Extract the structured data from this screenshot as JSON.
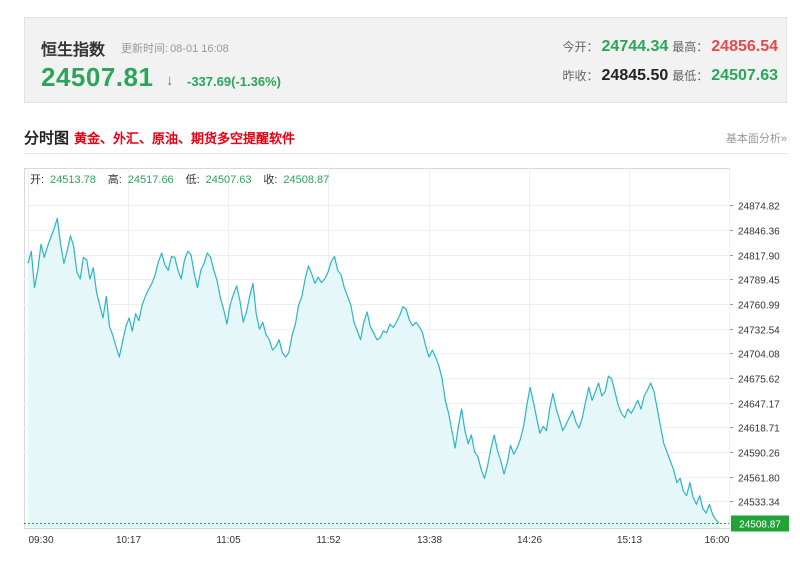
{
  "colors": {
    "up": "#e84a4a",
    "down": "#2aa55a",
    "line": "#2bb5c4",
    "fill": "#e6f7f9",
    "highlight_red": "#e60012",
    "last_price_bg": "#22a33a"
  },
  "quote": {
    "name": "恒生指数",
    "update_label": "更新时间:",
    "update_time": "08-01 16:08",
    "price": "24507.81",
    "arrow": "↓",
    "change": "-337.69(-1.36%)",
    "open_label": "今开：",
    "open": "24744.34",
    "high_label": "最高：",
    "high": "24856.54",
    "prev_close_label": "昨收：",
    "prev_close": "24845.50",
    "low_label": "最低：",
    "low": "24507.63"
  },
  "section": {
    "title": "分时图",
    "promo_link": "黄金、外汇、原油、期货多空提醒软件",
    "right_link": "基本面分析»"
  },
  "chart_data": {
    "type": "area",
    "ohlc_labels": [
      {
        "label": "开:",
        "value": "24513.78"
      },
      {
        "label": "高:",
        "value": "24517.66"
      },
      {
        "label": "低:",
        "value": "24507.63"
      },
      {
        "label": "收:",
        "value": "24508.87"
      }
    ],
    "x_ticks": [
      "09:30",
      "10:17",
      "11:05",
      "11:52",
      "13:38",
      "14:26",
      "15:13",
      "16:00"
    ],
    "y_ticks": [
      "24874.82",
      "24846.36",
      "24817.90",
      "24789.45",
      "24760.99",
      "24732.54",
      "24704.08",
      "24675.62",
      "24647.17",
      "24618.71",
      "24590.26",
      "24561.80",
      "24533.34"
    ],
    "y_range": [
      24505.0,
      24895.0
    ],
    "last_price_label": "24508.87",
    "last_price": 24508.87,
    "x_units": "minutes since 09:30 on the time axis (0 = 09:30, 7 ticks evenly spaced to 16:00)",
    "series": [
      {
        "values": [
          [
            0,
            24808
          ],
          [
            2,
            24822
          ],
          [
            4,
            24780
          ],
          [
            6,
            24800
          ],
          [
            8,
            24830
          ],
          [
            10,
            24815
          ],
          [
            12,
            24828
          ],
          [
            14,
            24838
          ],
          [
            16,
            24848
          ],
          [
            18,
            24860
          ],
          [
            20,
            24830
          ],
          [
            22,
            24808
          ],
          [
            24,
            24822
          ],
          [
            26,
            24840
          ],
          [
            28,
            24828
          ],
          [
            30,
            24798
          ],
          [
            32,
            24790
          ],
          [
            34,
            24815
          ],
          [
            36,
            24812
          ],
          [
            38,
            24790
          ],
          [
            40,
            24803
          ],
          [
            42,
            24775
          ],
          [
            44,
            24760
          ],
          [
            46,
            24745
          ],
          [
            48,
            24770
          ],
          [
            50,
            24735
          ],
          [
            52,
            24725
          ],
          [
            54,
            24712
          ],
          [
            56,
            24700
          ],
          [
            58,
            24718
          ],
          [
            60,
            24735
          ],
          [
            62,
            24745
          ],
          [
            64,
            24730
          ],
          [
            66,
            24750
          ],
          [
            68,
            24742
          ],
          [
            70,
            24760
          ],
          [
            72,
            24770
          ],
          [
            74,
            24778
          ],
          [
            76,
            24785
          ],
          [
            78,
            24795
          ],
          [
            80,
            24810
          ],
          [
            82,
            24820
          ],
          [
            84,
            24806
          ],
          [
            86,
            24800
          ],
          [
            88,
            24816
          ],
          [
            90,
            24815
          ],
          [
            92,
            24800
          ],
          [
            94,
            24790
          ],
          [
            96,
            24812
          ],
          [
            98,
            24822
          ],
          [
            100,
            24818
          ],
          [
            102,
            24796
          ],
          [
            104,
            24780
          ],
          [
            106,
            24800
          ],
          [
            108,
            24808
          ],
          [
            110,
            24820
          ],
          [
            112,
            24815
          ],
          [
            114,
            24800
          ],
          [
            116,
            24788
          ],
          [
            118,
            24768
          ],
          [
            120,
            24755
          ],
          [
            122,
            24738
          ],
          [
            124,
            24760
          ],
          [
            126,
            24772
          ],
          [
            128,
            24782
          ],
          [
            130,
            24765
          ],
          [
            132,
            24740
          ],
          [
            134,
            24752
          ],
          [
            136,
            24770
          ],
          [
            138,
            24785
          ],
          [
            140,
            24750
          ],
          [
            142,
            24732
          ],
          [
            144,
            24740
          ],
          [
            146,
            24726
          ],
          [
            148,
            24720
          ],
          [
            150,
            24708
          ],
          [
            152,
            24712
          ],
          [
            154,
            24720
          ],
          [
            156,
            24705
          ],
          [
            158,
            24700
          ],
          [
            160,
            24705
          ],
          [
            162,
            24725
          ],
          [
            164,
            24738
          ],
          [
            166,
            24760
          ],
          [
            168,
            24770
          ],
          [
            170,
            24790
          ],
          [
            172,
            24805
          ],
          [
            174,
            24796
          ],
          [
            176,
            24785
          ],
          [
            178,
            24792
          ],
          [
            180,
            24786
          ],
          [
            182,
            24790
          ],
          [
            184,
            24798
          ],
          [
            186,
            24810
          ],
          [
            188,
            24816
          ],
          [
            190,
            24800
          ],
          [
            192,
            24795
          ],
          [
            194,
            24780
          ],
          [
            196,
            24770
          ],
          [
            198,
            24760
          ],
          [
            200,
            24740
          ],
          [
            202,
            24730
          ],
          [
            204,
            24720
          ],
          [
            206,
            24740
          ],
          [
            208,
            24752
          ],
          [
            210,
            24735
          ],
          [
            212,
            24728
          ],
          [
            214,
            24720
          ],
          [
            216,
            24722
          ],
          [
            218,
            24730
          ],
          [
            220,
            24728
          ],
          [
            222,
            24738
          ],
          [
            224,
            24734
          ],
          [
            226,
            24740
          ],
          [
            228,
            24748
          ],
          [
            230,
            24758
          ],
          [
            232,
            24755
          ],
          [
            234,
            24742
          ],
          [
            236,
            24736
          ],
          [
            238,
            24740
          ],
          [
            240,
            24735
          ],
          [
            242,
            24728
          ],
          [
            244,
            24712
          ],
          [
            246,
            24700
          ],
          [
            248,
            24708
          ],
          [
            250,
            24700
          ],
          [
            252,
            24690
          ],
          [
            254,
            24675
          ],
          [
            256,
            24650
          ],
          [
            258,
            24635
          ],
          [
            260,
            24615
          ],
          [
            262,
            24595
          ],
          [
            264,
            24620
          ],
          [
            266,
            24640
          ],
          [
            268,
            24615
          ],
          [
            270,
            24600
          ],
          [
            272,
            24610
          ],
          [
            274,
            24590
          ],
          [
            276,
            24585
          ],
          [
            278,
            24570
          ],
          [
            280,
            24560
          ],
          [
            282,
            24575
          ],
          [
            284,
            24595
          ],
          [
            286,
            24610
          ],
          [
            288,
            24592
          ],
          [
            290,
            24580
          ],
          [
            292,
            24565
          ],
          [
            294,
            24578
          ],
          [
            296,
            24598
          ],
          [
            298,
            24588
          ],
          [
            300,
            24595
          ],
          [
            302,
            24605
          ],
          [
            304,
            24620
          ],
          [
            306,
            24645
          ],
          [
            308,
            24665
          ],
          [
            310,
            24648
          ],
          [
            312,
            24630
          ],
          [
            314,
            24612
          ],
          [
            316,
            24620
          ],
          [
            318,
            24615
          ],
          [
            320,
            24640
          ],
          [
            322,
            24658
          ],
          [
            324,
            24640
          ],
          [
            326,
            24628
          ],
          [
            328,
            24615
          ],
          [
            330,
            24622
          ],
          [
            332,
            24630
          ],
          [
            334,
            24638
          ],
          [
            336,
            24625
          ],
          [
            338,
            24618
          ],
          [
            340,
            24630
          ],
          [
            342,
            24648
          ],
          [
            344,
            24665
          ],
          [
            346,
            24650
          ],
          [
            348,
            24660
          ],
          [
            350,
            24670
          ],
          [
            352,
            24655
          ],
          [
            354,
            24660
          ],
          [
            356,
            24678
          ],
          [
            358,
            24675
          ],
          [
            360,
            24660
          ],
          [
            362,
            24645
          ],
          [
            364,
            24635
          ],
          [
            366,
            24630
          ],
          [
            368,
            24640
          ],
          [
            370,
            24635
          ],
          [
            372,
            24642
          ],
          [
            374,
            24650
          ],
          [
            376,
            24640
          ],
          [
            378,
            24655
          ],
          [
            380,
            24662
          ],
          [
            382,
            24670
          ],
          [
            384,
            24660
          ],
          [
            386,
            24640
          ],
          [
            388,
            24620
          ],
          [
            390,
            24600
          ],
          [
            392,
            24590
          ],
          [
            394,
            24580
          ],
          [
            396,
            24570
          ],
          [
            398,
            24555
          ],
          [
            400,
            24560
          ],
          [
            402,
            24545
          ],
          [
            404,
            24540
          ],
          [
            406,
            24555
          ],
          [
            408,
            24538
          ],
          [
            410,
            24530
          ],
          [
            412,
            24540
          ],
          [
            414,
            24525
          ],
          [
            416,
            24520
          ],
          [
            418,
            24530
          ],
          [
            420,
            24518
          ],
          [
            422,
            24512
          ],
          [
            424,
            24508
          ]
        ]
      }
    ]
  }
}
